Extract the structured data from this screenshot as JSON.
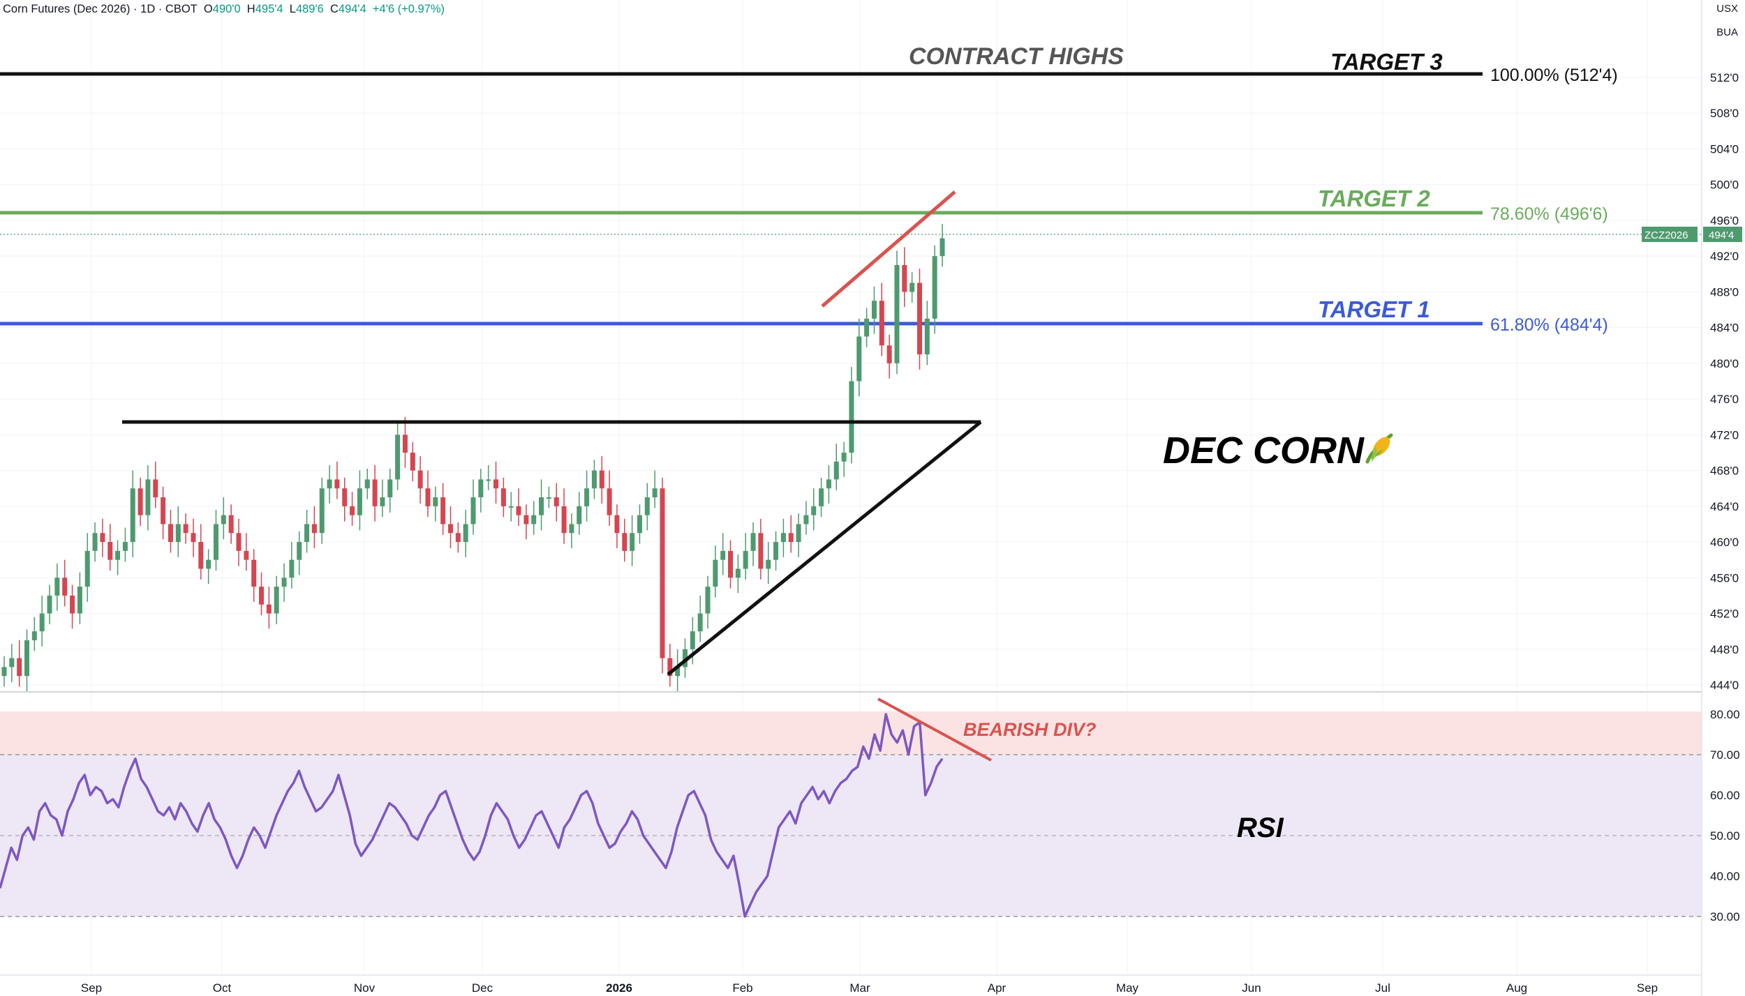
{
  "header": {
    "symbol": "Corn Futures (Dec 2026) · 1D · CBOT",
    "open_label": "O",
    "open": "490'0",
    "high_label": "H",
    "high": "495'4",
    "low_label": "L",
    "low": "489'6",
    "close_label": "C",
    "close": "494'4",
    "change": "+4'6 (+0.97%)"
  },
  "corner": {
    "currency": "USX",
    "unit": "BUA"
  },
  "price_tag": {
    "symbol": "ZCZ2026",
    "value": "494'4"
  },
  "colors": {
    "up": "#4e9a6f",
    "down": "#d64550",
    "target1": "#3b5bd6",
    "target2": "#6aab5c",
    "target3": "#111111",
    "rsi_line": "#7e57c2",
    "rsi_band": "#ede7f6",
    "overbought_zone": "#fbe3e4",
    "red_annotation": "#d9534f",
    "grid": "#f0f3fa"
  },
  "annotations": {
    "contract_highs": "CONTRACT HIGHS",
    "target3": "TARGET 3",
    "target3_level": "100.00% (512'4)",
    "target2": "TARGET 2",
    "target2_level": "78.60% (496'6)",
    "target1": "TARGET 1",
    "target1_level": "61.80% (484'4)",
    "title": "DEC CORN",
    "bearish": "BEARISH DIV?",
    "rsi": "RSI"
  },
  "icons": {
    "title_icon": "corn-icon"
  },
  "chart_data": [
    {
      "type": "candlestick",
      "title": "Corn Futures (Dec 2026) · 1D · CBOT",
      "x_ticks": [
        "Sep",
        "Oct",
        "Nov",
        "Dec",
        "2026",
        "Feb",
        "Mar",
        "Apr",
        "May",
        "Jun",
        "Jul",
        "Aug",
        "Sep"
      ],
      "y_ticks": [
        444,
        448,
        452,
        456,
        460,
        464,
        468,
        472,
        476,
        480,
        484,
        488,
        492,
        496,
        500,
        504,
        508,
        512
      ],
      "y_tick_labels": [
        "444'0",
        "448'0",
        "452'0",
        "456'0",
        "460'0",
        "464'0",
        "468'0",
        "472'0",
        "476'0",
        "480'0",
        "484'0",
        "488'0",
        "492'0",
        "496'0",
        "500'0",
        "504'0",
        "508'0",
        "512'0"
      ],
      "ylim": [
        443.5,
        518
      ],
      "grid": true,
      "levels": [
        {
          "name": "100.00%",
          "value": 512.5
        },
        {
          "name": "78.60%",
          "value": 496.75
        },
        {
          "name": "61.80%",
          "value": 484.5
        }
      ],
      "ohlc_approx_closes": [
        446,
        447,
        445,
        449,
        450,
        452,
        454,
        456,
        454,
        452,
        455,
        459,
        461,
        460,
        458,
        459,
        460,
        466,
        463,
        467,
        465,
        462,
        460,
        462,
        461,
        460,
        457,
        458,
        462,
        463,
        461,
        459,
        458,
        455,
        453,
        452,
        455,
        456,
        458,
        460,
        462,
        461,
        466,
        467,
        466,
        464,
        463,
        466,
        467,
        464,
        465,
        467,
        472,
        470,
        468,
        466,
        464,
        465,
        462,
        461,
        460,
        462,
        465,
        467,
        467,
        466,
        464,
        464,
        463,
        462,
        463,
        465,
        465,
        464,
        461,
        462,
        464,
        466,
        468,
        466,
        463,
        461,
        459,
        461,
        463,
        465,
        466,
        447,
        445,
        446,
        448,
        450,
        452,
        455,
        458,
        459,
        456,
        457,
        459,
        461,
        457,
        458,
        460,
        461,
        460,
        462,
        463,
        464,
        466,
        467,
        469,
        470,
        478,
        483,
        485,
        487,
        482,
        480,
        491,
        488,
        489,
        481,
        485,
        492,
        494
      ],
      "last": 494.5
    },
    {
      "type": "line",
      "title": "RSI",
      "y_ticks": [
        30,
        40,
        50,
        60,
        70,
        80
      ],
      "y_tick_labels": [
        "30.00",
        "40.00",
        "50.00",
        "60.00",
        "70.00",
        "80.00"
      ],
      "ylim": [
        24,
        84
      ],
      "bands": {
        "overbought": 80,
        "upper": 70,
        "mid": 50,
        "lower": 30
      },
      "values": [
        37,
        42,
        47,
        44,
        50,
        52,
        49,
        56,
        58,
        55,
        54,
        50,
        56,
        59,
        63,
        65,
        60,
        62,
        61,
        58,
        59,
        57,
        62,
        66,
        69,
        64,
        62,
        59,
        56,
        55,
        57,
        54,
        58,
        56,
        53,
        51,
        55,
        58,
        54,
        52,
        49,
        45,
        42,
        45,
        49,
        52,
        50,
        47,
        51,
        55,
        58,
        61,
        63,
        66,
        62,
        59,
        56,
        57,
        59,
        61,
        65,
        60,
        55,
        48,
        45,
        47,
        49,
        52,
        55,
        58,
        57,
        55,
        53,
        50,
        49,
        52,
        55,
        57,
        60,
        61,
        57,
        53,
        49,
        46,
        44,
        46,
        50,
        55,
        58,
        56,
        54,
        50,
        47,
        49,
        52,
        55,
        56,
        53,
        50,
        47,
        52,
        54,
        57,
        60,
        61,
        58,
        53,
        50,
        47,
        48,
        51,
        53,
        56,
        54,
        50,
        48,
        46,
        44,
        42,
        46,
        52,
        56,
        60,
        61,
        58,
        55,
        49,
        46,
        44,
        42,
        45,
        38,
        30,
        33,
        36,
        38,
        40,
        46,
        52,
        54,
        56,
        53,
        58,
        60,
        62,
        59,
        61,
        58,
        61,
        63,
        64,
        66,
        67,
        72,
        69,
        75,
        71,
        80,
        75,
        73,
        76,
        70,
        77,
        78,
        60,
        63,
        67,
        69
      ]
    }
  ]
}
